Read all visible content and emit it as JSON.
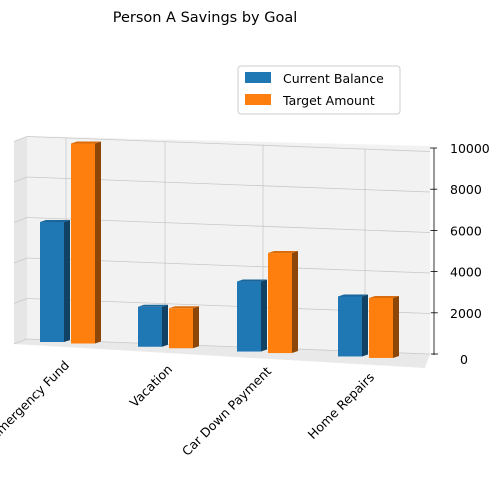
{
  "chart_data": {
    "type": "bar",
    "title": "Person A Savings by Goal",
    "categories": [
      "Emergency Fund",
      "Vacation",
      "Car Down Payment",
      "Home Repairs"
    ],
    "series": [
      {
        "name": "Current Balance",
        "color": "#1f77b4",
        "values": [
          6000,
          2000,
          3500,
          3000
        ]
      },
      {
        "name": "Target Amount",
        "color": "#ff7f0e",
        "values": [
          10000,
          2000,
          5000,
          3000
        ]
      }
    ],
    "zlim": [
      0,
      10000
    ],
    "zticks": [
      0,
      2000,
      4000,
      6000,
      8000,
      10000
    ],
    "grid": true,
    "legend_position": "upper-right",
    "projection": "3d"
  }
}
